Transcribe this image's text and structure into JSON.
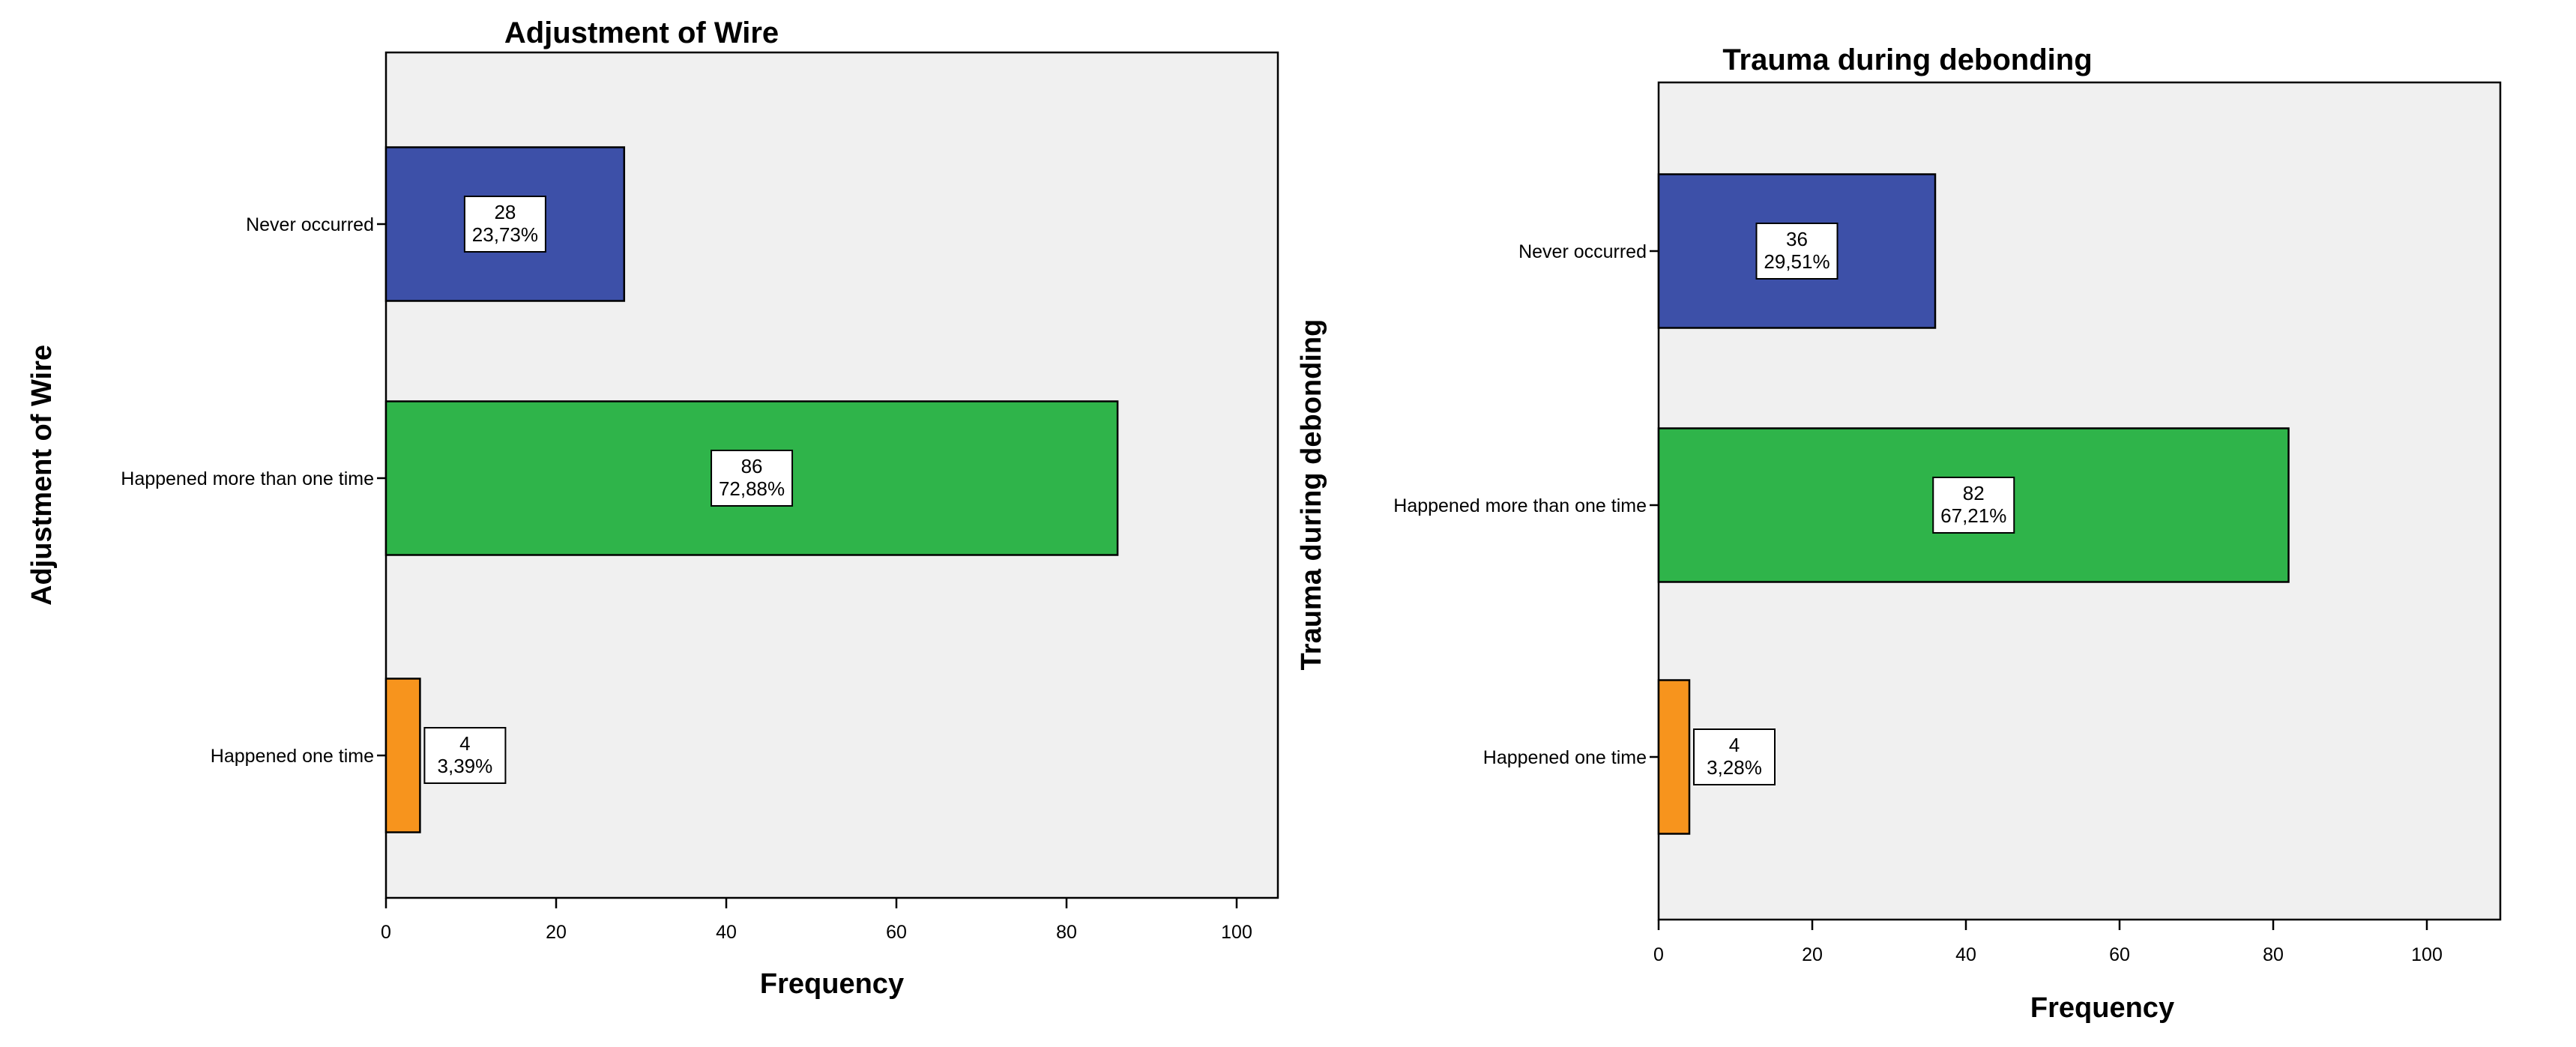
{
  "chart_data": [
    {
      "type": "bar",
      "orientation": "horizontal",
      "title": "Adjustment of Wire",
      "xlabel": "Frequency",
      "ylabel": "Adjustment of Wire",
      "xlim": [
        0,
        105
      ],
      "xticks": [
        0,
        20,
        40,
        60,
        80,
        100
      ],
      "categories": [
        "Never occurred",
        "Happened more than one time",
        "Happened one time"
      ],
      "values": [
        28,
        86,
        4
      ],
      "percent_labels": [
        "23,73%",
        "72,88%",
        "3,39%"
      ],
      "colors": [
        "#3d50a8",
        "#2fb44a",
        "#f7941d"
      ],
      "grid": false
    },
    {
      "type": "bar",
      "orientation": "horizontal",
      "title": "Trauma during debonding",
      "xlabel": "Frequency",
      "ylabel": "Trauma during debonding",
      "xlim": [
        0,
        105
      ],
      "xticks": [
        0,
        20,
        40,
        60,
        80,
        100
      ],
      "categories": [
        "Never occurred",
        "Happened more than one time",
        "Happened one time"
      ],
      "values": [
        36,
        82,
        4
      ],
      "percent_labels": [
        "29,51%",
        "67,21%",
        "3,28%"
      ],
      "colors": [
        "#3d50a8",
        "#2fb44a",
        "#f7941d"
      ],
      "grid": false
    }
  ]
}
